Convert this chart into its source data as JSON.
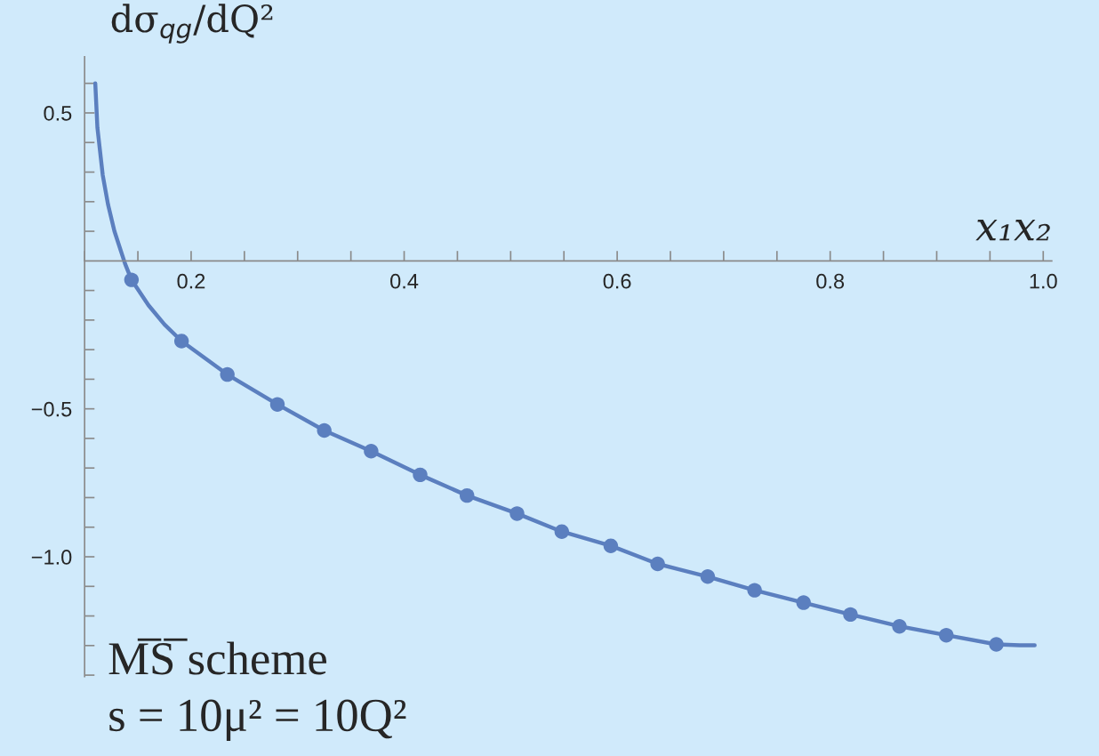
{
  "chart_data": {
    "type": "line",
    "xlabel": "x₁x₂",
    "ylabel": "dσ$_{qg}$/dQ²",
    "annotations": [
      "M̅S̅ scheme",
      "s = 10μ² = 10Q²"
    ],
    "series": [
      {
        "color": "#5b7fbf",
        "x": [
          0.11,
          0.112,
          0.117,
          0.122,
          0.128,
          0.138,
          0.144,
          0.16,
          0.175,
          0.191,
          0.234,
          0.281,
          0.325,
          0.369,
          0.415,
          0.459,
          0.506,
          0.548,
          0.594,
          0.638,
          0.685,
          0.729,
          0.775,
          0.819,
          0.865,
          0.909,
          0.956,
          0.978,
          0.992
        ],
        "values": [
          0.6,
          0.45,
          0.29,
          0.19,
          0.1,
          -0.01,
          -0.064,
          -0.15,
          -0.215,
          -0.271,
          -0.384,
          -0.485,
          -0.573,
          -0.643,
          -0.723,
          -0.793,
          -0.854,
          -0.915,
          -0.963,
          -1.024,
          -1.067,
          -1.113,
          -1.155,
          -1.195,
          -1.235,
          -1.265,
          -1.296,
          -1.299,
          -1.299
        ]
      },
      {
        "type": "scatter",
        "color": "#5b7fbf",
        "marker": "circle",
        "x": [
          0.144,
          0.191,
          0.234,
          0.281,
          0.325,
          0.369,
          0.415,
          0.459,
          0.506,
          0.548,
          0.594,
          0.638,
          0.685,
          0.729,
          0.775,
          0.819,
          0.865,
          0.909,
          0.956
        ],
        "values": [
          -0.064,
          -0.271,
          -0.384,
          -0.485,
          -0.573,
          -0.643,
          -0.723,
          -0.793,
          -0.854,
          -0.915,
          -0.963,
          -1.024,
          -1.067,
          -1.113,
          -1.155,
          -1.195,
          -1.235,
          -1.265,
          -1.296
        ]
      }
    ],
    "xlim": [
      0.1,
      1.008
    ],
    "ylim": [
      -1.405,
      0.69
    ],
    "xticks": [
      {
        "value": 0.1,
        "label": null
      },
      {
        "value": 0.15,
        "label": null
      },
      0.2,
      {
        "value": 0.25,
        "label": null
      },
      {
        "value": 0.3,
        "label": null
      },
      {
        "value": 0.35,
        "label": null
      },
      0.4,
      {
        "value": 0.45,
        "label": null
      },
      {
        "value": 0.5,
        "label": null
      },
      {
        "value": 0.55,
        "label": null
      },
      0.6,
      {
        "value": 0.65,
        "label": null
      },
      {
        "value": 0.7,
        "label": null
      },
      {
        "value": 0.75,
        "label": null
      },
      0.8,
      {
        "value": 0.85,
        "label": null
      },
      {
        "value": 0.9,
        "label": null
      },
      {
        "value": 0.95,
        "label": null
      },
      {
        "value": 1.0,
        "label": "1.0"
      }
    ],
    "yticks": [
      {
        "value": -1.4,
        "label": null
      },
      {
        "value": -1.3,
        "label": null
      },
      {
        "value": -1.2,
        "label": null
      },
      {
        "value": -1.1,
        "label": null
      },
      {
        "value": -1.0,
        "label": "−1.0"
      },
      {
        "value": -0.9,
        "label": null
      },
      {
        "value": -0.8,
        "label": null
      },
      {
        "value": -0.7,
        "label": null
      },
      {
        "value": -0.6,
        "label": null
      },
      {
        "value": -0.5,
        "label": "−0.5"
      },
      {
        "value": -0.4,
        "label": null
      },
      {
        "value": -0.3,
        "label": null
      },
      {
        "value": -0.2,
        "label": null
      },
      {
        "value": -0.1,
        "label": null
      },
      {
        "value": 0.1,
        "label": null
      },
      {
        "value": 0.2,
        "label": null
      },
      {
        "value": 0.3,
        "label": null
      },
      {
        "value": 0.4,
        "label": null
      },
      0.5,
      {
        "value": 0.6,
        "label": null
      }
    ],
    "grid": false,
    "legend": false
  }
}
